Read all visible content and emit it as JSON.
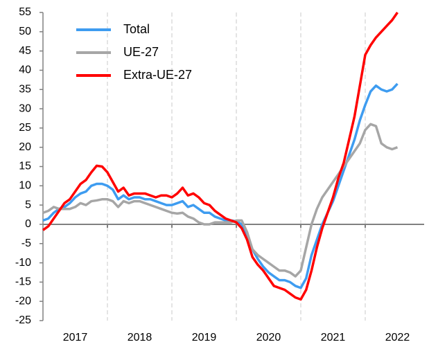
{
  "chart_data": {
    "type": "line",
    "categories": [
      null,
      null,
      null,
      null,
      null,
      null,
      "2017",
      null,
      null,
      null,
      null,
      null,
      null,
      null,
      null,
      null,
      null,
      null,
      "2018",
      null,
      null,
      null,
      null,
      null,
      null,
      null,
      null,
      null,
      null,
      null,
      "2019",
      null,
      null,
      null,
      null,
      null,
      null,
      null,
      null,
      null,
      null,
      null,
      "2020",
      null,
      null,
      null,
      null,
      null,
      null,
      null,
      null,
      null,
      null,
      null,
      "2021",
      null,
      null,
      null,
      null,
      null,
      null,
      null,
      null,
      null,
      null,
      null,
      "2022"
    ],
    "series": [
      {
        "name": "Total",
        "color": "#3e9cf0",
        "values": [
          1,
          1.5,
          3,
          4,
          4.5,
          5.5,
          7,
          8,
          8.5,
          10,
          10.5,
          10.5,
          10,
          9,
          6.5,
          7.5,
          6.5,
          7,
          7,
          6.5,
          6.5,
          6,
          5.5,
          5,
          5,
          5.5,
          6,
          4.5,
          5,
          4,
          3,
          3,
          2,
          1.5,
          1,
          1,
          0.8,
          0,
          -3,
          -6.5,
          -9,
          -11,
          -12.5,
          -13.5,
          -14.5,
          -14.5,
          -15,
          -16,
          -16.5,
          -14,
          -8,
          -4,
          0,
          3,
          6,
          10,
          14,
          18,
          22,
          27,
          31,
          34.5,
          36,
          35,
          34.5,
          35,
          36.5
        ]
      },
      {
        "name": "UE-27",
        "color": "#a6a6a6",
        "values": [
          3,
          3.5,
          4.5,
          4,
          4,
          4,
          4.5,
          5.5,
          5,
          6,
          6.2,
          6.5,
          6.5,
          6,
          4.5,
          6,
          5.5,
          6,
          6,
          5.5,
          5,
          4.5,
          4,
          3.5,
          3,
          2.8,
          3,
          2,
          1.5,
          0.5,
          0,
          0,
          0.5,
          0.5,
          0.5,
          0.5,
          1,
          1,
          -2,
          -6.5,
          -8,
          -9,
          -10,
          -11,
          -12,
          -12,
          -12.5,
          -13.5,
          -12,
          -6,
          0,
          4,
          7,
          9,
          11,
          13,
          15,
          17,
          19,
          21,
          24.5,
          26,
          25.5,
          21,
          20,
          19.5,
          20
        ]
      },
      {
        "name": "Extra-UE-27",
        "color": "#ff0000",
        "values": [
          -1.5,
          -0.5,
          1.5,
          3.5,
          5.5,
          6.5,
          8.5,
          10.5,
          11.5,
          13.5,
          15.2,
          15,
          13.5,
          11,
          8.5,
          9.5,
          7.5,
          8,
          8,
          8,
          7.5,
          7,
          7.5,
          7.5,
          7,
          8,
          9.5,
          7.5,
          8,
          7,
          5.5,
          5,
          3.5,
          2.5,
          1.5,
          1,
          0.5,
          -1,
          -4,
          -8.5,
          -10.5,
          -12,
          -14,
          -16,
          -16.5,
          -17,
          -18,
          -19,
          -19.5,
          -17,
          -12,
          -6,
          -1,
          3,
          7,
          12,
          16,
          22,
          28,
          36,
          44,
          46.5,
          48.5,
          50,
          51.5,
          53,
          55
        ]
      }
    ],
    "ylim": [
      -25,
      55
    ],
    "yticks": [
      -25,
      -20,
      -15,
      -10,
      -5,
      0,
      5,
      10,
      15,
      20,
      25,
      30,
      35,
      40,
      45,
      50,
      55
    ],
    "legend": "upper left"
  }
}
